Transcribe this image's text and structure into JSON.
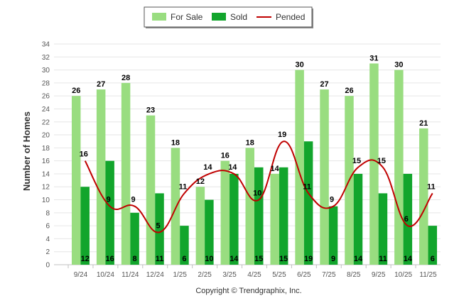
{
  "chart_data": {
    "type": "bar",
    "ylabel": "Number of Homes",
    "ylim": [
      0,
      34
    ],
    "ytick_step": 2,
    "grid": true,
    "legend_position": "top-center",
    "categories": [
      "9/24",
      "10/24",
      "11/24",
      "12/24",
      "1/25",
      "2/25",
      "3/25",
      "4/25",
      "5/25",
      "6/25",
      "7/25",
      "8/25",
      "9/25",
      "10/25",
      "11/25"
    ],
    "series": [
      {
        "name": "For Sale",
        "kind": "bar",
        "color": "#99dd80",
        "values": [
          26,
          27,
          28,
          23,
          18,
          12,
          16,
          18,
          14,
          30,
          27,
          26,
          31,
          30,
          21
        ]
      },
      {
        "name": "Sold",
        "kind": "bar",
        "color": "#12a52c",
        "values": [
          12,
          16,
          8,
          11,
          6,
          10,
          14,
          15,
          15,
          19,
          9,
          14,
          11,
          14,
          6
        ]
      },
      {
        "name": "Pended",
        "kind": "line",
        "color": "#c00000",
        "values": [
          16,
          9,
          9,
          5,
          11,
          14,
          14,
          10,
          19,
          11,
          9,
          15,
          15,
          6,
          11
        ]
      }
    ],
    "credit": "Copyright © Trendgraphix, Inc."
  }
}
